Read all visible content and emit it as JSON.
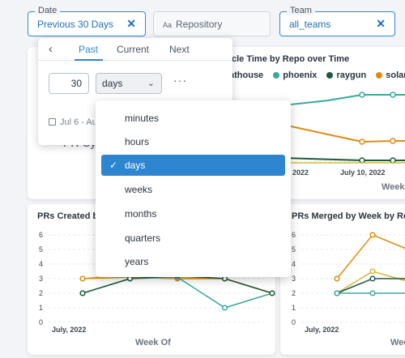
{
  "filters": {
    "date": {
      "label": "Date",
      "value": "Previous 30 Days"
    },
    "repository": {
      "placeholder": "Repository"
    },
    "team": {
      "label": "Team",
      "value": "all_teams"
    }
  },
  "date_picker": {
    "tabs": [
      "Past",
      "Current",
      "Next"
    ],
    "active_tab": "Past",
    "amount": "30",
    "unit": "days",
    "range_text": "Jul 6 - Au"
  },
  "unit_menu": {
    "options": [
      "minutes",
      "hours",
      "days",
      "weeks",
      "months",
      "quarters",
      "years"
    ],
    "selected": "days"
  },
  "cards": {
    "top_right": {
      "title": "cle Time by Repo over Time",
      "legend": [
        {
          "name": "athouse",
          "color": "#d9b53a"
        },
        {
          "name": "phoenix",
          "color": "#3aa89b"
        },
        {
          "name": "raygun",
          "color": "#1c5a3a"
        },
        {
          "name": "solar",
          "color": "#e08a10"
        }
      ],
      "x_ticks": [
        ", 2022",
        "July 10, 2022"
      ],
      "x_title": "Week"
    },
    "top_left": {
      "title_fragment": "PR Cyc"
    },
    "prs_created": {
      "title": "PRs Created by",
      "x_title": "Week Of",
      "x_tick": "July, 2022"
    },
    "prs_merged": {
      "title": "PRs Merged by Week by Rep",
      "x_title": "Wee",
      "x_tick": "July, 2022"
    }
  },
  "chart_data": [
    {
      "type": "line",
      "title": "PRs Created by",
      "xlabel": "Week Of",
      "ylim": [
        0,
        6
      ],
      "yticks": [
        0,
        1,
        2,
        3,
        4,
        5,
        6
      ],
      "series": [
        {
          "color": "#d9b53a",
          "values": [
            3,
            3.3,
            3.1,
            3,
            2
          ]
        },
        {
          "color": "#e08a10",
          "values": [
            3,
            3.1,
            3,
            3,
            2
          ]
        },
        {
          "color": "#3aa89b",
          "values": [
            2,
            3,
            3.1,
            1,
            2
          ]
        },
        {
          "color": "#1c5a3a",
          "values": [
            2,
            3,
            3.2,
            3,
            2
          ]
        }
      ]
    },
    {
      "type": "line",
      "title": "PRs Merged by Week by Rep",
      "xlabel": "Wee",
      "ylim": [
        0,
        6
      ],
      "yticks": [
        0,
        1,
        2,
        3,
        4,
        5,
        6
      ],
      "series": [
        {
          "color": "#e08a10",
          "values": [
            3,
            6,
            5
          ]
        },
        {
          "color": "#d9b53a",
          "values": [
            2,
            3.5,
            2.8
          ]
        },
        {
          "color": "#1c5a3a",
          "values": [
            2,
            3,
            3
          ]
        },
        {
          "color": "#3aa89b",
          "values": [
            2,
            2,
            2
          ]
        }
      ]
    }
  ]
}
